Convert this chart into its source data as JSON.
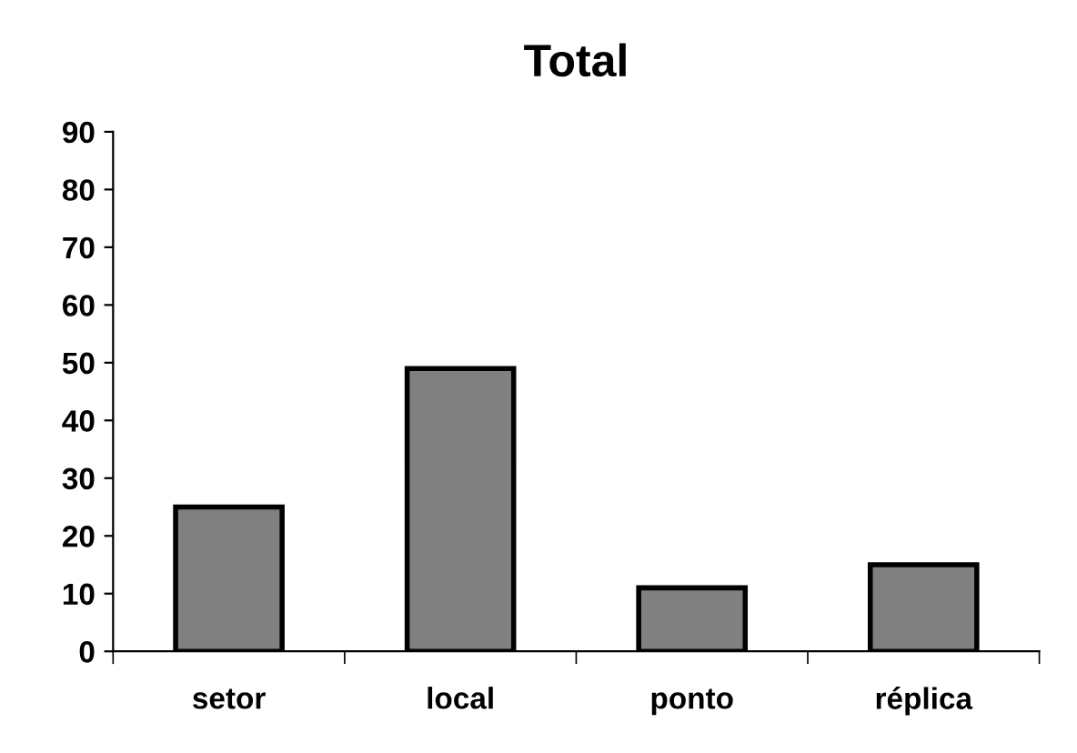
{
  "chart_data": {
    "type": "bar",
    "title": "Total",
    "categories": [
      "setor",
      "local",
      "ponto",
      "réplica"
    ],
    "values": [
      25,
      49,
      11,
      15
    ],
    "color": "#808080",
    "ylim": [
      0,
      90
    ],
    "yticks": [
      0,
      10,
      20,
      30,
      40,
      50,
      60,
      70,
      80,
      90
    ],
    "grid": false,
    "legend": false
  }
}
